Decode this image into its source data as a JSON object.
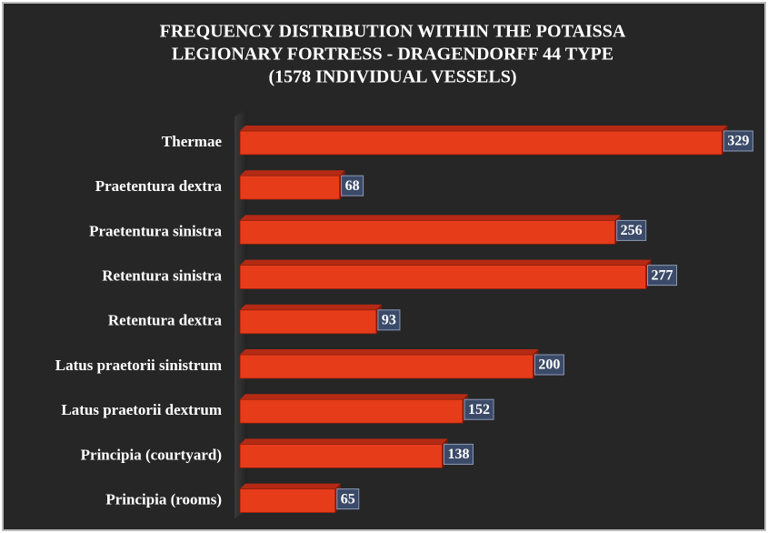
{
  "chart_data": {
    "type": "bar",
    "orientation": "horizontal",
    "title": [
      "FREQUENCY DISTRIBUTION WITHIN THE POTAISSA",
      "LEGIONARY FORTRESS - DRAGENDORFF 44 TYPE",
      "(1578 INDIVIDUAL VESSELS)"
    ],
    "categories": [
      "Thermae",
      "Praetentura dextra",
      "Praetentura sinistra",
      "Retentura sinistra",
      "Retentura dextra",
      "Latus praetorii sinistrum",
      "Latus praetorii dextrum",
      "Principia (courtyard)",
      "Principia (rooms)"
    ],
    "values": [
      329,
      68,
      256,
      277,
      93,
      200,
      152,
      138,
      65
    ],
    "color": "#e63c1a"
  }
}
